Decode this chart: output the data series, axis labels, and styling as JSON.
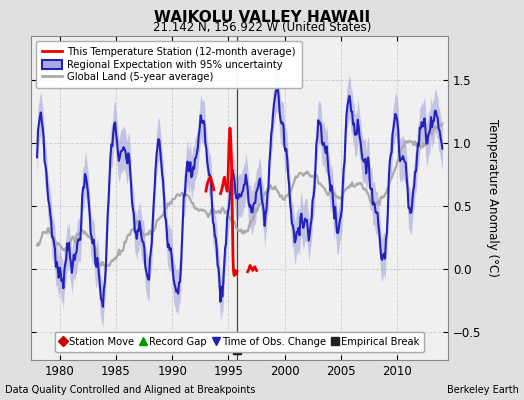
{
  "title": "WAIKOLU VALLEY HAWAII",
  "subtitle": "21.142 N, 156.922 W (United States)",
  "ylabel": "Temperature Anomaly (°C)",
  "xlabel_left": "Data Quality Controlled and Aligned at Breakpoints",
  "xlabel_right": "Berkeley Earth",
  "xlim": [
    1977.5,
    2014.5
  ],
  "ylim": [
    -0.72,
    1.85
  ],
  "yticks": [
    -0.5,
    0,
    0.5,
    1.0,
    1.5
  ],
  "xticks": [
    1980,
    1985,
    1990,
    1995,
    2000,
    2005,
    2010
  ],
  "bg_color": "#e0e0e0",
  "plot_bg_color": "#f0f0f0",
  "empirical_break_x": 1995.75,
  "regional_color": "#2222bb",
  "regional_fill_color": "#aaaadd",
  "global_color": "#aaaaaa",
  "station_color": "#ee0000",
  "legend1_entries": [
    {
      "label": "This Temperature Station (12-month average)",
      "color": "#ee0000"
    },
    {
      "label": "Regional Expectation with 95% uncertainty",
      "color": "#2222bb",
      "fill": "#aaaadd"
    },
    {
      "label": "Global Land (5-year average)",
      "color": "#aaaaaa"
    }
  ],
  "legend2_entries": [
    {
      "label": "Station Move",
      "marker": "D",
      "color": "#cc0000"
    },
    {
      "label": "Record Gap",
      "marker": "^",
      "color": "#009900"
    },
    {
      "label": "Time of Obs. Change",
      "marker": "v",
      "color": "#2222bb"
    },
    {
      "label": "Empirical Break",
      "marker": "s",
      "color": "#222222"
    }
  ]
}
